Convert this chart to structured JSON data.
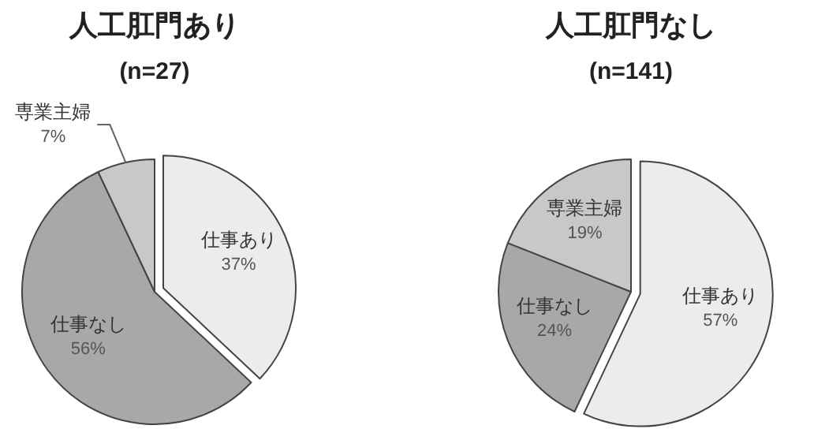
{
  "chart_data": [
    {
      "type": "pie",
      "title": "人工肛門あり",
      "subtitle": "(n=27)",
      "categories": [
        "仕事あり",
        "仕事なし",
        "専業主婦"
      ],
      "values": [
        37,
        56,
        7
      ],
      "value_labels": [
        "37%",
        "56%",
        "7%"
      ],
      "colors": [
        "#ececec",
        "#a8a8a8",
        "#c8c8c8"
      ]
    },
    {
      "type": "pie",
      "title": "人工肛門なし",
      "subtitle": "(n=141)",
      "categories": [
        "仕事あり",
        "仕事なし",
        "専業主婦"
      ],
      "values": [
        57,
        24,
        19
      ],
      "value_labels": [
        "57%",
        "24%",
        "19%"
      ],
      "colors": [
        "#ececec",
        "#a8a8a8",
        "#c8c8c8"
      ]
    }
  ]
}
